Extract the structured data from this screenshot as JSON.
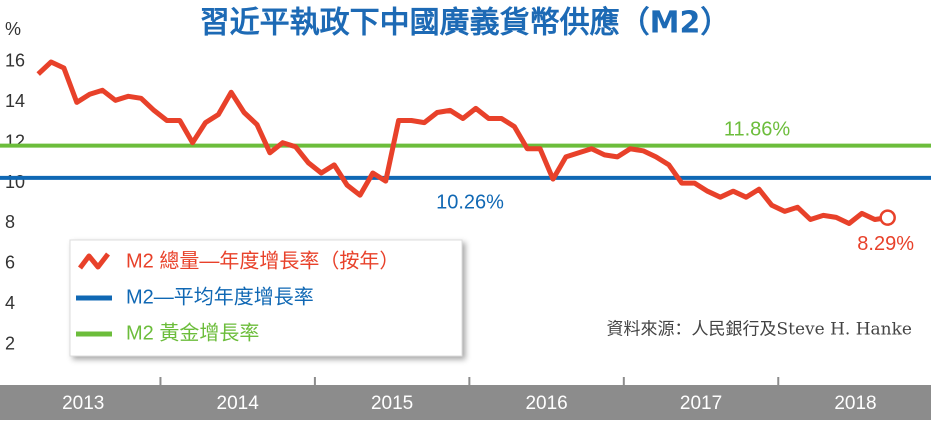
{
  "chart_data": {
    "type": "line",
    "title": "習近平執政下中國廣義貨幣供應（M2）",
    "y_label": "%",
    "source": "資料來源：人民銀行及Steve H. Hanke",
    "xlim": [
      2013.0,
      2018.95
    ],
    "ylim": [
      0,
      17
    ],
    "yticks": [
      2,
      4,
      6,
      8,
      10,
      12,
      14,
      16
    ],
    "xticks": [
      {
        "value": 2013.5,
        "label": "2013"
      },
      {
        "value": 2014.5,
        "label": "2014"
      },
      {
        "value": 2015.5,
        "label": "2015"
      },
      {
        "value": 2016.5,
        "label": "2016"
      },
      {
        "value": 2017.5,
        "label": "2017"
      },
      {
        "value": 2018.5,
        "label": "2018"
      }
    ],
    "year_boundaries": [
      2014,
      2015,
      2016,
      2017,
      2018
    ],
    "x": [
      2013.2083,
      2013.2917,
      2013.375,
      2013.4583,
      2013.5417,
      2013.625,
      2013.7083,
      2013.7917,
      2013.875,
      2013.9583,
      2014.0417,
      2014.125,
      2014.2083,
      2014.2917,
      2014.375,
      2014.4583,
      2014.5417,
      2014.625,
      2014.7083,
      2014.7917,
      2014.875,
      2014.9583,
      2015.0417,
      2015.125,
      2015.2083,
      2015.2917,
      2015.375,
      2015.4583,
      2015.5417,
      2015.625,
      2015.7083,
      2015.7917,
      2015.875,
      2015.9583,
      2016.0417,
      2016.125,
      2016.2083,
      2016.2917,
      2016.375,
      2016.4583,
      2016.5417,
      2016.625,
      2016.7083,
      2016.7917,
      2016.875,
      2016.9583,
      2017.0417,
      2017.125,
      2017.2083,
      2017.2917,
      2017.375,
      2017.4583,
      2017.5417,
      2017.625,
      2017.7083,
      2017.7917,
      2017.875,
      2017.9583,
      2018.0417,
      2018.125,
      2018.2083,
      2018.2917,
      2018.375,
      2018.4583,
      2018.5417,
      2018.625,
      2018.7083
    ],
    "series": [
      {
        "name": "M2 總量—年度增長率（按年）",
        "color": "#e8412a",
        "values": [
          15.4,
          16.0,
          15.7,
          14.0,
          14.4,
          14.6,
          14.1,
          14.3,
          14.2,
          13.6,
          13.1,
          13.1,
          12.0,
          13.0,
          13.4,
          14.5,
          13.5,
          12.9,
          11.5,
          12.0,
          11.8,
          11.0,
          10.5,
          10.9,
          9.9,
          9.4,
          10.5,
          10.1,
          13.1,
          13.1,
          13.0,
          13.5,
          13.6,
          13.2,
          13.7,
          13.2,
          13.2,
          12.8,
          11.7,
          11.7,
          10.2,
          11.3,
          11.5,
          11.7,
          11.4,
          11.3,
          11.7,
          11.6,
          11.3,
          10.9,
          10.0,
          10.0,
          9.6,
          9.3,
          9.6,
          9.3,
          9.7,
          8.9,
          8.6,
          8.8,
          8.2,
          8.4,
          8.3,
          8.0,
          8.5,
          8.2,
          8.29
        ],
        "value_labels": [
          null,
          null,
          null,
          null,
          null,
          null,
          null,
          null,
          null,
          null,
          null,
          null,
          null,
          null,
          null,
          null,
          null,
          null,
          null,
          null,
          null,
          null,
          null,
          null,
          null,
          null,
          null,
          null,
          null,
          null,
          null,
          null,
          null,
          null,
          null,
          null,
          null,
          null,
          null,
          null,
          null,
          null,
          null,
          null,
          null,
          null,
          null,
          null,
          null,
          null,
          null,
          null,
          null,
          null,
          null,
          null,
          null,
          null,
          null,
          null,
          null,
          null,
          null,
          null,
          null,
          null,
          "8.29%"
        ]
      }
    ],
    "reference_lines": [
      {
        "name": "M2—平均年度增長率",
        "value": 10.26,
        "label": "10.26%",
        "color": "#1068b4"
      },
      {
        "name": "M2 黃金增長率",
        "value": 11.86,
        "label": "11.86%",
        "color": "#6cbd3b"
      }
    ],
    "grid": false
  }
}
